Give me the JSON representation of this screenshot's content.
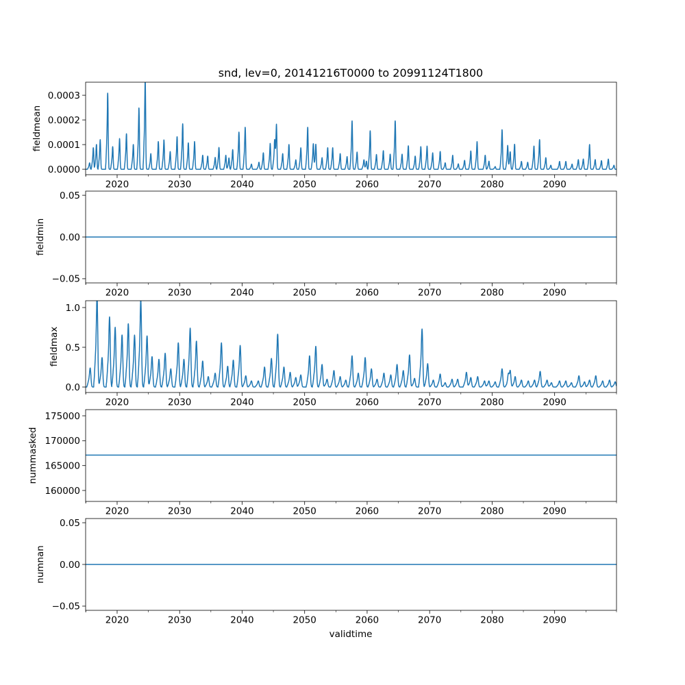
{
  "chart_data": {
    "type": "line",
    "title": "snd, lev=0, 20141216T0000 to 20991124T1800",
    "xlabel": "validtime",
    "xlim": [
      2014.96,
      2099.9
    ],
    "xticks": [
      2020,
      2030,
      2040,
      2050,
      2060,
      2070,
      2080,
      2090
    ],
    "xtick_labels": [
      "2020",
      "2030",
      "2040",
      "2050",
      "2060",
      "2070",
      "2080",
      "2090"
    ],
    "x_minor_ticks": [
      2015,
      2025,
      2035,
      2045,
      2055,
      2065,
      2075,
      2085,
      2095
    ],
    "line_color": "#1f77b4",
    "grid": false,
    "panels": [
      {
        "ylabel": "fieldmean",
        "ylim": [
          -2.2e-05,
          0.000353
        ],
        "yticks": [
          0,
          0.0001,
          0.0002,
          0.0003
        ],
        "ytick_labels": [
          "0.0000",
          "0.0001",
          "0.0002",
          "0.0003"
        ],
        "kind": "seasonal_peaks",
        "peak_width_years": 0.07,
        "peak_years": [
          2015.6,
          2016.2,
          2016.7,
          2017.3,
          2018.5,
          2019.3,
          2020.4,
          2021.5,
          2022.6,
          2023.5,
          2024.5,
          2025.4,
          2026.6,
          2027.5,
          2028.5,
          2029.6,
          2030.5,
          2031.4,
          2032.4,
          2033.7,
          2034.5,
          2035.7,
          2036.3,
          2037.4,
          2037.9,
          2038.5,
          2039.5,
          2040.5,
          2041.5,
          2042.7,
          2043.4,
          2044.5,
          2045.2,
          2045.5,
          2046.5,
          2047.5,
          2048.6,
          2049.4,
          2050.5,
          2051.4,
          2051.8,
          2052.8,
          2053.7,
          2054.5,
          2055.7,
          2056.8,
          2057.6,
          2058.4,
          2059.5,
          2059.9,
          2060.5,
          2061.5,
          2062.6,
          2063.7,
          2064.5,
          2065.6,
          2066.6,
          2067.7,
          2068.6,
          2069.6,
          2070.5,
          2071.7,
          2072.5,
          2073.7,
          2074.6,
          2075.6,
          2076.6,
          2077.6,
          2078.9,
          2079.5,
          2080.5,
          2081.6,
          2082.5,
          2082.9,
          2083.6,
          2084.7,
          2085.7,
          2086.7,
          2087.6,
          2088.6,
          2089.4,
          2090.8,
          2091.8,
          2092.8,
          2093.8,
          2094.6,
          2095.6,
          2096.5,
          2097.5,
          2098.6,
          2099.5
        ],
        "peak_values": [
          2.4e-05,
          8e-05,
          9.2e-05,
          0.00011,
          0.000283,
          8.4e-05,
          0.000114,
          0.000132,
          9.2e-05,
          0.000228,
          0.000337,
          5.8e-05,
          0.000103,
          0.000109,
          6.6e-05,
          0.000121,
          0.000169,
          9.8e-05,
          0.000103,
          5.2e-05,
          4.9e-05,
          4.4e-05,
          8.1e-05,
          5.2e-05,
          4.2e-05,
          7.3e-05,
          0.000138,
          0.000156,
          1.9e-05,
          2.6e-05,
          6.1e-05,
          9.6e-05,
          9.6e-05,
          0.000168,
          5.8e-05,
          9.2e-05,
          3.5e-05,
          8e-05,
          0.000156,
          9.5e-05,
          9.3e-05,
          4.3e-05,
          8e-05,
          8e-05,
          5.8e-05,
          4.7e-05,
          0.00018,
          6.4e-05,
          3.5e-05,
          3e-05,
          0.000143,
          5.5e-05,
          6.9e-05,
          5.6e-05,
          0.00018,
          5.6e-05,
          8.7e-05,
          4.9e-05,
          8.4e-05,
          8.6e-05,
          6.1e-05,
          6.6e-05,
          2.4e-05,
          5.2e-05,
          2e-05,
          3.3e-05,
          6.8e-05,
          0.000103,
          5.2e-05,
          3e-05,
          1e-05,
          0.000147,
          8.9e-05,
          6.5e-05,
          9.3e-05,
          2.9e-05,
          2.6e-05,
          8.6e-05,
          0.00011,
          4.3e-05,
          1.5e-05,
          2.9e-05,
          2.9e-05,
          1.9e-05,
          3.6e-05,
          3.8e-05,
          9.2e-05,
          3.6e-05,
          3.2e-05,
          3.8e-05,
          1.5e-05
        ]
      },
      {
        "ylabel": "fieldmin",
        "ylim": [
          -0.055,
          0.055
        ],
        "yticks": [
          -0.05,
          0,
          0.05
        ],
        "ytick_labels": [
          "−0.05",
          "0.00",
          "0.05"
        ],
        "kind": "constant",
        "value": 0
      },
      {
        "ylabel": "fieldmax",
        "ylim": [
          -0.069,
          1.086
        ],
        "yticks": [
          0,
          0.5,
          1.0
        ],
        "ytick_labels": [
          "0.0",
          "0.5",
          "1.0"
        ],
        "kind": "seasonal_peaks",
        "peak_width_years": 0.11,
        "peak_years": [
          2015.7,
          2016.8,
          2017.6,
          2018.8,
          2019.7,
          2020.8,
          2021.8,
          2022.8,
          2023.8,
          2024.8,
          2025.6,
          2026.7,
          2027.7,
          2028.6,
          2029.8,
          2030.7,
          2031.7,
          2032.7,
          2033.7,
          2034.6,
          2035.7,
          2036.7,
          2037.7,
          2038.6,
          2039.7,
          2040.6,
          2041.5,
          2042.6,
          2043.6,
          2044.7,
          2045.7,
          2046.7,
          2047.7,
          2048.6,
          2049.4,
          2050.8,
          2051.8,
          2052.8,
          2053.6,
          2054.7,
          2055.7,
          2056.6,
          2057.6,
          2058.6,
          2059.7,
          2060.7,
          2061.6,
          2062.7,
          2063.8,
          2064.8,
          2065.8,
          2066.8,
          2067.6,
          2068.8,
          2069.7,
          2070.6,
          2071.7,
          2072.5,
          2073.6,
          2074.5,
          2075.9,
          2076.6,
          2077.7,
          2078.8,
          2079.5,
          2080.5,
          2081.6,
          2082.6,
          2082.9,
          2083.7,
          2084.7,
          2085.8,
          2086.8,
          2087.7,
          2088.8,
          2089.5,
          2090.8,
          2091.8,
          2092.7,
          2093.9,
          2094.8,
          2095.6,
          2096.6,
          2097.7,
          2098.8,
          2099.7
        ],
        "peak_values": [
          0.22,
          1.04,
          0.34,
          0.81,
          0.69,
          0.6,
          0.73,
          0.6,
          1.01,
          0.59,
          0.35,
          0.32,
          0.39,
          0.21,
          0.51,
          0.32,
          0.68,
          0.53,
          0.3,
          0.12,
          0.16,
          0.51,
          0.24,
          0.31,
          0.48,
          0.13,
          0.07,
          0.07,
          0.23,
          0.33,
          0.61,
          0.23,
          0.17,
          0.11,
          0.14,
          0.36,
          0.47,
          0.26,
          0.09,
          0.19,
          0.12,
          0.08,
          0.36,
          0.16,
          0.34,
          0.21,
          0.09,
          0.16,
          0.14,
          0.26,
          0.19,
          0.37,
          0.1,
          0.67,
          0.27,
          0.08,
          0.15,
          0.05,
          0.09,
          0.09,
          0.17,
          0.11,
          0.12,
          0.07,
          0.07,
          0.06,
          0.21,
          0.1,
          0.19,
          0.12,
          0.08,
          0.07,
          0.08,
          0.18,
          0.08,
          0.05,
          0.07,
          0.07,
          0.05,
          0.13,
          0.06,
          0.08,
          0.13,
          0.07,
          0.08,
          0.06
        ]
      },
      {
        "ylabel": "nummasked",
        "ylim": [
          157800,
          176240
        ],
        "yticks": [
          160000,
          165000,
          170000,
          175000
        ],
        "ytick_labels": [
          "160000",
          "165000",
          "170000",
          "175000"
        ],
        "kind": "constant",
        "value": 167100
      },
      {
        "ylabel": "numnan",
        "ylim": [
          -0.055,
          0.055
        ],
        "yticks": [
          -0.05,
          0,
          0.05
        ],
        "ytick_labels": [
          "−0.05",
          "0.00",
          "0.05"
        ],
        "kind": "constant",
        "value": 0
      }
    ]
  }
}
